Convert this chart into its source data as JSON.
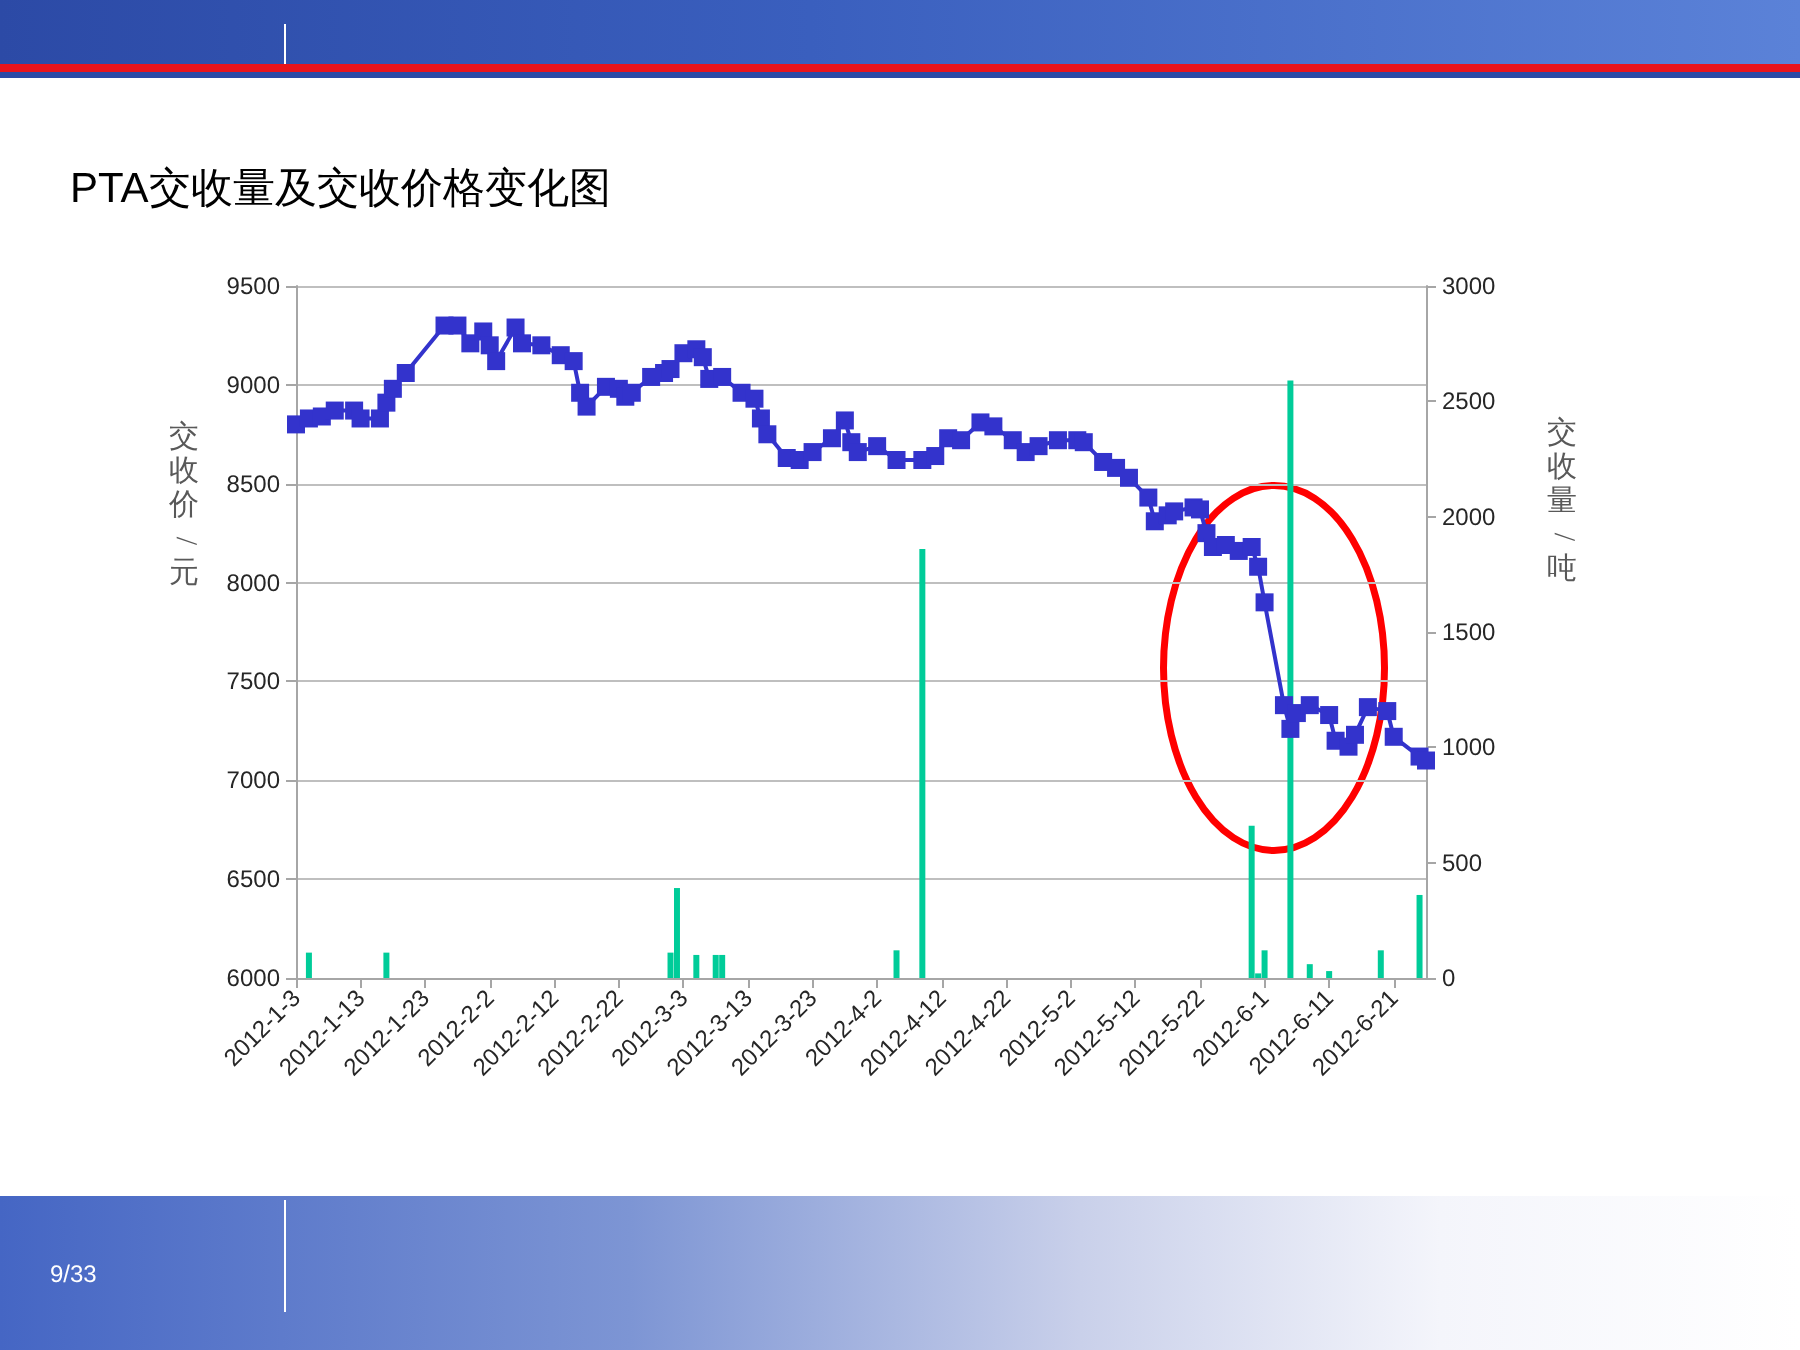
{
  "chart_data": {
    "type": "line",
    "title": "PTA交收量及交收价格变化图",
    "ylabel": "交收价/元",
    "y2label": "交收量/吨",
    "annotations": [
      "9/33"
    ],
    "series": [
      {
        "color": "#3333cc",
        "x": [
          "2012-01-03",
          "2012-01-05",
          "2012-01-07",
          "2012-01-09",
          "2012-01-12",
          "2012-01-13",
          "2012-01-16",
          "2012-01-17",
          "2012-01-18",
          "2012-01-20",
          "2012-01-26",
          "2012-01-28",
          "2012-01-30",
          "2012-02-01",
          "2012-02-02",
          "2012-02-03",
          "2012-02-06",
          "2012-02-07",
          "2012-02-10",
          "2012-02-13",
          "2012-02-15",
          "2012-02-16",
          "2012-02-17",
          "2012-02-20",
          "2012-02-22",
          "2012-02-23",
          "2012-02-24",
          "2012-02-27",
          "2012-02-29",
          "2012-03-01",
          "2012-03-03",
          "2012-03-05",
          "2012-03-06",
          "2012-03-07",
          "2012-03-09",
          "2012-03-12",
          "2012-03-14",
          "2012-03-15",
          "2012-03-16",
          "2012-03-19",
          "2012-03-21",
          "2012-03-23",
          "2012-03-26",
          "2012-03-28",
          "2012-03-29",
          "2012-03-30",
          "2012-04-02",
          "2012-04-05",
          "2012-04-09",
          "2012-04-11",
          "2012-04-13",
          "2012-04-15",
          "2012-04-18",
          "2012-04-20",
          "2012-04-23",
          "2012-04-25",
          "2012-04-27",
          "2012-04-30",
          "2012-05-03",
          "2012-05-04",
          "2012-05-07",
          "2012-05-09",
          "2012-05-11",
          "2012-05-14",
          "2012-05-15",
          "2012-05-17",
          "2012-05-18",
          "2012-05-21",
          "2012-05-22",
          "2012-05-23",
          "2012-05-24",
          "2012-05-26",
          "2012-05-28",
          "2012-05-30",
          "2012-05-31",
          "2012-06-01",
          "2012-06-04",
          "2012-06-05",
          "2012-06-06",
          "2012-06-08",
          "2012-06-11",
          "2012-06-12",
          "2012-06-14",
          "2012-06-15",
          "2012-06-17",
          "2012-06-20",
          "2012-06-21",
          "2012-06-25",
          "2012-06-26"
        ],
        "values": [
          8800,
          8830,
          8840,
          8870,
          8870,
          8830,
          8830,
          8910,
          8980,
          9060,
          9300,
          9300,
          9210,
          9270,
          9200,
          9120,
          9290,
          9210,
          9200,
          9150,
          9120,
          8960,
          8890,
          8990,
          8980,
          8940,
          8960,
          9040,
          9060,
          9080,
          9160,
          9180,
          9140,
          9030,
          9040,
          8960,
          8930,
          8830,
          8750,
          8630,
          8620,
          8660,
          8730,
          8820,
          8710,
          8660,
          8690,
          8620,
          8620,
          8640,
          8730,
          8720,
          8810,
          8790,
          8720,
          8660,
          8690,
          8720,
          8720,
          8710,
          8610,
          8580,
          8530,
          8430,
          8310,
          8340,
          8360,
          8380,
          8370,
          8250,
          8180,
          8190,
          8160,
          8180,
          8080,
          7900,
          7380,
          7260,
          7340,
          7380,
          7330,
          7200,
          7170,
          7230,
          7370,
          7350,
          7220,
          7120,
          7100
        ]
      },
      {
        "type": "bar",
        "axis": "y2",
        "color": "#00cc99",
        "x": [
          "2012-01-05",
          "2012-01-17",
          "2012-03-01",
          "2012-03-02",
          "2012-03-05",
          "2012-03-08",
          "2012-03-09",
          "2012-04-05",
          "2012-04-09",
          "2012-05-30",
          "2012-05-31",
          "2012-06-01",
          "2012-06-05",
          "2012-06-08",
          "2012-06-11",
          "2012-06-19",
          "2012-06-25"
        ],
        "values": [
          110,
          110,
          110,
          390,
          100,
          100,
          100,
          120,
          1860,
          660,
          20,
          120,
          2590,
          60,
          30,
          120,
          360
        ]
      }
    ],
    "xlim": [
      "2012-01-03",
      "2012-06-26"
    ],
    "xticks": [
      {
        "value": "2012-01-03",
        "label": "2012-1-3"
      },
      {
        "value": "2012-01-13",
        "label": "2012-1-13"
      },
      {
        "value": "2012-01-23",
        "label": "2012-1-23"
      },
      {
        "value": "2012-02-02",
        "label": "2012-2-2"
      },
      {
        "value": "2012-02-12",
        "label": "2012-2-12"
      },
      {
        "value": "2012-02-22",
        "label": "2012-2-22"
      },
      {
        "value": "2012-03-03",
        "label": "2012-3-3"
      },
      {
        "value": "2012-03-13",
        "label": "2012-3-13"
      },
      {
        "value": "2012-03-23",
        "label": "2012-3-23"
      },
      {
        "value": "2012-04-02",
        "label": "2012-4-2"
      },
      {
        "value": "2012-04-12",
        "label": "2012-4-12"
      },
      {
        "value": "2012-04-22",
        "label": "2012-4-22"
      },
      {
        "value": "2012-05-02",
        "label": "2012-5-2"
      },
      {
        "value": "2012-05-12",
        "label": "2012-5-12"
      },
      {
        "value": "2012-05-22",
        "label": "2012-5-22"
      },
      {
        "value": "2012-06-01",
        "label": "2012-6-1"
      },
      {
        "value": "2012-06-11",
        "label": "2012-6-11"
      },
      {
        "value": "2012-06-21",
        "label": "2012-6-21"
      }
    ],
    "ylim": [
      6000,
      9500
    ],
    "yticks": [
      6000,
      6500,
      7000,
      7500,
      8000,
      8500,
      9000,
      9500
    ],
    "y2lim": [
      0,
      3000
    ],
    "y2ticks": [
      0,
      500,
      1000,
      1500,
      2000,
      2500,
      3000
    ],
    "grid": "y",
    "marker": "square",
    "line_style": "solid"
  }
}
